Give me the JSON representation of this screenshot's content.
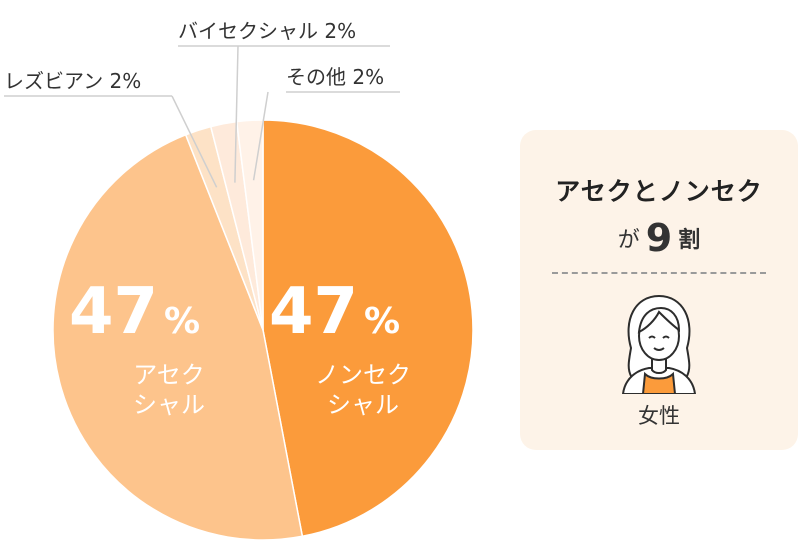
{
  "chart_data": {
    "type": "pie",
    "slices": [
      {
        "label": "ノンセクシャル",
        "value": 47,
        "color": "#fb9b3b"
      },
      {
        "label": "アセクシャル",
        "value": 47,
        "color": "#fdc48c"
      },
      {
        "label": "レズビアン",
        "value": 2,
        "color": "#fde2c6"
      },
      {
        "label": "バイセクシャル",
        "value": 2,
        "color": "#feeadb"
      },
      {
        "label": "その他",
        "value": 2,
        "color": "#fff2e8"
      }
    ],
    "inside_labels": [
      {
        "value_text": "47",
        "unit": "%",
        "line1": "ノンセク",
        "line2": "シャル"
      },
      {
        "value_text": "47",
        "unit": "%",
        "line1": "アセク",
        "line2": "シャル"
      }
    ],
    "callouts": [
      {
        "text": "レズビアン 2%"
      },
      {
        "text": "バイセクシャル 2%"
      },
      {
        "text": "その他 2%"
      }
    ]
  },
  "card": {
    "title": "アセクとノンセク",
    "sub_ga": "が",
    "sub_num": "9",
    "sub_wari": "割",
    "gender": "女性",
    "avatar_icon": "woman-avatar-icon",
    "colors": {
      "background": "#fdf3e8",
      "accent": "#fb9b3b"
    }
  }
}
